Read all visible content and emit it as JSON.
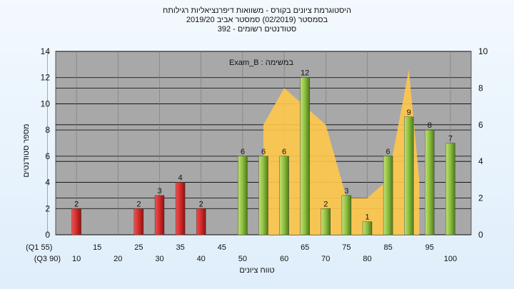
{
  "header": {
    "line1": "היסטוגרמת ציונים בקורס - משוואות דיפרנציאליות רגילותח",
    "line2": "בסמסטר  (02/2019)  סמסטר אביב 2019/20",
    "line3": "סטודנטים רשומים - 392"
  },
  "chart_data": {
    "type": "bar",
    "exam_label": "Exam_B : במשימה",
    "ylabel": "מספר סטודנטים",
    "xlabel": "טווח ציונים",
    "ylim_left": [
      0,
      14
    ],
    "ylim_right": [
      0,
      10
    ],
    "yticks_left": [
      "0",
      "2",
      "4",
      "6",
      "8",
      "10",
      "12",
      "14"
    ],
    "yticks_right": [
      "0",
      "2",
      "4",
      "6",
      "8",
      "10"
    ],
    "x_upper_ticks": [
      "15",
      "25",
      "35",
      "45",
      "(Q1 55)",
      "65",
      "75",
      "85",
      "95"
    ],
    "x_lower_ticks": [
      "10",
      "20",
      "30",
      "40",
      "50",
      "60",
      "70",
      "80",
      "(Q3 90)",
      "100"
    ],
    "bins": [
      10,
      15,
      20,
      25,
      30,
      35,
      40,
      45,
      50,
      55,
      60,
      65,
      70,
      75,
      80,
      85,
      90,
      95,
      100
    ],
    "values": [
      2,
      0,
      0,
      2,
      3,
      4,
      2,
      0,
      6,
      6,
      6,
      12,
      2,
      3,
      1,
      6,
      9,
      8,
      7
    ],
    "labels": [
      "2",
      "",
      "",
      "2",
      "3",
      "4",
      "2",
      "",
      "6",
      "6",
      "6",
      "12",
      "2",
      "3",
      "1",
      "6",
      "9",
      "8",
      "7"
    ],
    "fail_threshold": 50,
    "colors": {
      "fail_bar": "#d42a2a",
      "pass_bar": "#8cbf3c",
      "area": "#ffc84a",
      "plot_bg": "#a8a8a8",
      "grid": "#000000"
    },
    "area_series": {
      "x": [
        55,
        60,
        70,
        75,
        80,
        85,
        90,
        92.5
      ],
      "values": [
        6,
        8,
        6,
        2,
        2,
        3,
        9,
        3
      ]
    }
  }
}
